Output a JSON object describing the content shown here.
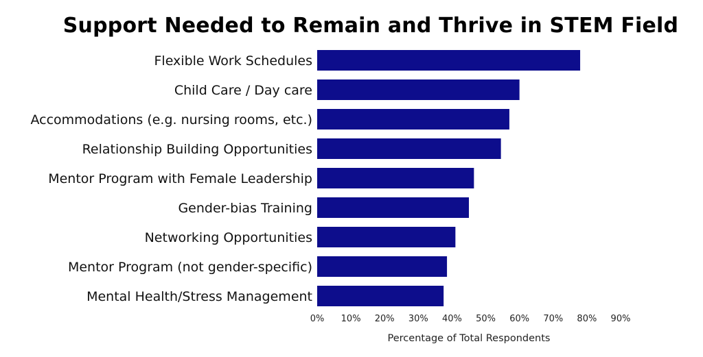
{
  "chart_data": {
    "type": "bar",
    "orientation": "horizontal",
    "title": "Support Needed to Remain and Thrive in STEM Field",
    "xlabel": "Percentage of Total Respondents",
    "ylabel": "",
    "categories": [
      "Flexible Work Schedules",
      "Child Care / Day care",
      "Accommodations (e.g. nursing rooms, etc.)",
      "Relationship Building Opportunities",
      "Mentor Program with Female Leadership",
      "Gender-bias Training",
      "Networking Opportunities",
      "Mentor Program (not gender-specific)",
      "Mental Health/Stress Management"
    ],
    "values": [
      78,
      60,
      57,
      54.5,
      46.5,
      45,
      41,
      38.5,
      37.5
    ],
    "xlim": [
      0,
      90
    ],
    "x_ticks": [
      "0%",
      "10%",
      "20%",
      "30%",
      "40%",
      "50%",
      "60%",
      "70%",
      "80%",
      "90%"
    ],
    "grid": false,
    "legend": "none",
    "bar_color": "#0d0d8c"
  }
}
